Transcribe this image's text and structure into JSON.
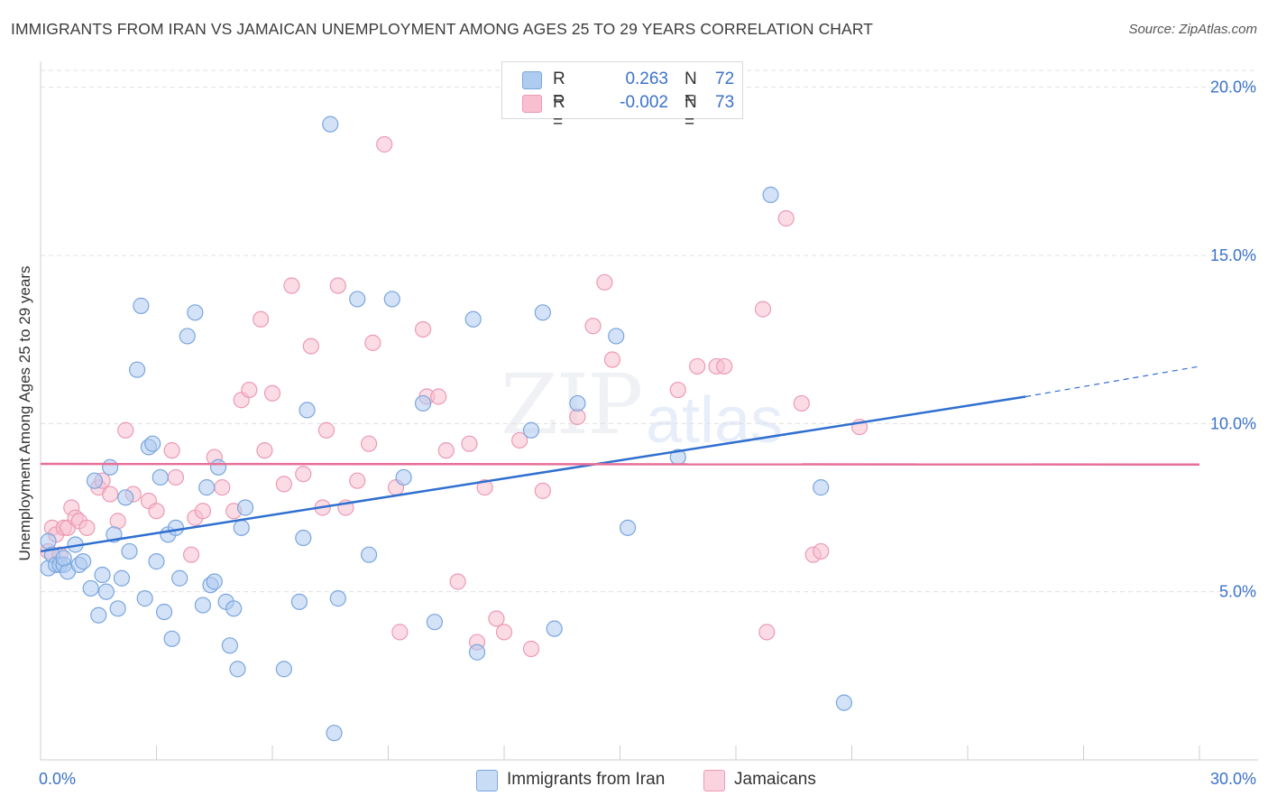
{
  "header": {
    "title": "IMMIGRANTS FROM IRAN VS JAMAICAN UNEMPLOYMENT AMONG AGES 25 TO 29 YEARS CORRELATION CHART",
    "source": "Source: ZipAtlas.com"
  },
  "watermark": {
    "zip": "ZIP",
    "atlas": "atlas"
  },
  "legend": {
    "series1": {
      "r_label": "R =",
      "r_value": "0.263",
      "n_label": "N =",
      "n_value": "72"
    },
    "series2": {
      "r_label": "R =",
      "r_value": "-0.002",
      "n_label": "N =",
      "n_value": "73"
    }
  },
  "bottom_legend": {
    "series1_label": "Immigrants from Iran",
    "series2_label": "Jamaicans"
  },
  "colors": {
    "blue_fill": "#aecbf0",
    "blue_stroke": "#7aa6de",
    "blue_line": "#2f6fd0",
    "pink_fill": "#f7bfd0",
    "pink_stroke": "#ec9ab4",
    "pink_line": "#e76f98",
    "axis_text": "#3a72c8",
    "grid": "#e0e0e0"
  },
  "chart_data": {
    "type": "scatter",
    "title": "IMMIGRANTS FROM IRAN VS JAMAICAN UNEMPLOYMENT AMONG AGES 25 TO 29 YEARS CORRELATION CHART",
    "xlabel": "",
    "ylabel": "Unemployment Among Ages 25 to 29 years",
    "xlim": [
      0,
      30
    ],
    "ylim": [
      0,
      20.5
    ],
    "x_tick_labels": [
      "0.0%",
      "30.0%"
    ],
    "y_ticks": [
      5,
      10,
      15,
      20
    ],
    "y_tick_labels": [
      "5.0%",
      "10.0%",
      "15.0%",
      "20.0%"
    ],
    "grid": true,
    "series": [
      {
        "name": "Immigrants from Iran",
        "color": "#aecbf0",
        "points": [
          [
            0.2,
            6.5
          ],
          [
            0.2,
            5.7
          ],
          [
            0.3,
            6.1
          ],
          [
            0.4,
            5.8
          ],
          [
            0.5,
            5.8
          ],
          [
            0.6,
            5.8
          ],
          [
            0.7,
            5.6
          ],
          [
            0.9,
            6.4
          ],
          [
            1.0,
            5.8
          ],
          [
            1.1,
            5.9
          ],
          [
            1.3,
            5.1
          ],
          [
            1.4,
            8.3
          ],
          [
            1.5,
            4.3
          ],
          [
            1.6,
            5.5
          ],
          [
            1.7,
            5.0
          ],
          [
            1.8,
            8.7
          ],
          [
            1.9,
            6.7
          ],
          [
            2.0,
            4.5
          ],
          [
            2.1,
            5.4
          ],
          [
            2.2,
            7.8
          ],
          [
            2.3,
            6.2
          ],
          [
            2.5,
            11.6
          ],
          [
            2.6,
            13.5
          ],
          [
            2.7,
            4.8
          ],
          [
            2.8,
            9.3
          ],
          [
            2.9,
            9.4
          ],
          [
            3.0,
            5.9
          ],
          [
            3.1,
            8.4
          ],
          [
            3.2,
            4.4
          ],
          [
            3.3,
            6.7
          ],
          [
            3.4,
            3.6
          ],
          [
            3.5,
            6.9
          ],
          [
            3.6,
            5.4
          ],
          [
            3.8,
            12.6
          ],
          [
            4.0,
            13.3
          ],
          [
            4.2,
            4.6
          ],
          [
            4.3,
            8.1
          ],
          [
            4.4,
            5.2
          ],
          [
            4.5,
            5.3
          ],
          [
            4.6,
            8.7
          ],
          [
            4.8,
            4.7
          ],
          [
            4.9,
            3.4
          ],
          [
            5.0,
            4.5
          ],
          [
            5.1,
            2.7
          ],
          [
            5.2,
            6.9
          ],
          [
            5.3,
            7.5
          ],
          [
            6.3,
            2.7
          ],
          [
            6.7,
            4.7
          ],
          [
            6.8,
            6.6
          ],
          [
            6.9,
            10.4
          ],
          [
            7.5,
            18.9
          ],
          [
            7.6,
            0.8
          ],
          [
            7.7,
            4.8
          ],
          [
            8.2,
            13.7
          ],
          [
            8.5,
            6.1
          ],
          [
            9.1,
            13.7
          ],
          [
            9.4,
            8.4
          ],
          [
            9.9,
            10.6
          ],
          [
            10.2,
            4.1
          ],
          [
            11.2,
            13.1
          ],
          [
            11.3,
            3.2
          ],
          [
            12.7,
            9.8
          ],
          [
            13.0,
            13.3
          ],
          [
            13.3,
            3.9
          ],
          [
            13.9,
            10.6
          ],
          [
            14.9,
            12.6
          ],
          [
            15.2,
            6.9
          ],
          [
            16.5,
            9.0
          ],
          [
            18.9,
            16.8
          ],
          [
            20.2,
            8.1
          ],
          [
            20.8,
            1.7
          ],
          [
            0.6,
            6.0
          ]
        ]
      },
      {
        "name": "Jamaicans",
        "color": "#f7bfd0",
        "points": [
          [
            0.2,
            6.2
          ],
          [
            0.3,
            6.9
          ],
          [
            0.4,
            6.7
          ],
          [
            0.5,
            6.1
          ],
          [
            0.6,
            6.9
          ],
          [
            0.7,
            6.9
          ],
          [
            0.8,
            7.5
          ],
          [
            0.9,
            7.2
          ],
          [
            1.0,
            7.1
          ],
          [
            1.2,
            6.9
          ],
          [
            1.5,
            8.1
          ],
          [
            1.6,
            8.3
          ],
          [
            1.8,
            7.9
          ],
          [
            2.0,
            7.1
          ],
          [
            2.2,
            9.8
          ],
          [
            2.4,
            7.9
          ],
          [
            2.8,
            7.7
          ],
          [
            3.0,
            7.4
          ],
          [
            3.4,
            9.2
          ],
          [
            3.5,
            8.4
          ],
          [
            3.9,
            6.1
          ],
          [
            4.0,
            7.2
          ],
          [
            4.2,
            7.4
          ],
          [
            4.5,
            9.0
          ],
          [
            4.7,
            8.1
          ],
          [
            5.0,
            7.4
          ],
          [
            5.2,
            10.7
          ],
          [
            5.4,
            11.0
          ],
          [
            5.7,
            13.1
          ],
          [
            5.8,
            9.2
          ],
          [
            6.0,
            10.9
          ],
          [
            6.3,
            8.2
          ],
          [
            6.5,
            14.1
          ],
          [
            6.8,
            8.5
          ],
          [
            7.0,
            12.3
          ],
          [
            7.3,
            7.5
          ],
          [
            7.4,
            9.8
          ],
          [
            7.7,
            14.1
          ],
          [
            7.9,
            7.5
          ],
          [
            8.2,
            8.3
          ],
          [
            8.5,
            9.4
          ],
          [
            8.6,
            12.4
          ],
          [
            8.9,
            18.3
          ],
          [
            9.2,
            8.1
          ],
          [
            9.3,
            3.8
          ],
          [
            9.9,
            12.8
          ],
          [
            10.0,
            10.8
          ],
          [
            10.3,
            10.8
          ],
          [
            10.5,
            9.2
          ],
          [
            10.8,
            5.3
          ],
          [
            11.1,
            9.4
          ],
          [
            11.3,
            3.5
          ],
          [
            11.5,
            8.1
          ],
          [
            11.8,
            4.2
          ],
          [
            12.0,
            3.8
          ],
          [
            12.4,
            9.5
          ],
          [
            12.7,
            3.3
          ],
          [
            13.0,
            8.0
          ],
          [
            13.9,
            10.2
          ],
          [
            14.3,
            12.9
          ],
          [
            14.6,
            14.2
          ],
          [
            14.8,
            11.9
          ],
          [
            16.5,
            11.0
          ],
          [
            17.0,
            11.7
          ],
          [
            17.5,
            11.7
          ],
          [
            17.7,
            11.7
          ],
          [
            18.7,
            13.4
          ],
          [
            18.8,
            3.8
          ],
          [
            19.3,
            16.1
          ],
          [
            19.7,
            10.6
          ],
          [
            20.0,
            6.1
          ],
          [
            20.2,
            6.2
          ],
          [
            21.2,
            9.9
          ]
        ]
      }
    ],
    "trendlines": [
      {
        "series": "Immigrants from Iran",
        "x": [
          0,
          25.5
        ],
        "y": [
          6.2,
          10.8
        ],
        "dashed_extension": [
          25.5,
          30
        ],
        "dashed_y_end": 11.7
      },
      {
        "series": "Jamaicans",
        "x": [
          0,
          30
        ],
        "y": [
          8.8,
          8.78
        ]
      }
    ]
  }
}
